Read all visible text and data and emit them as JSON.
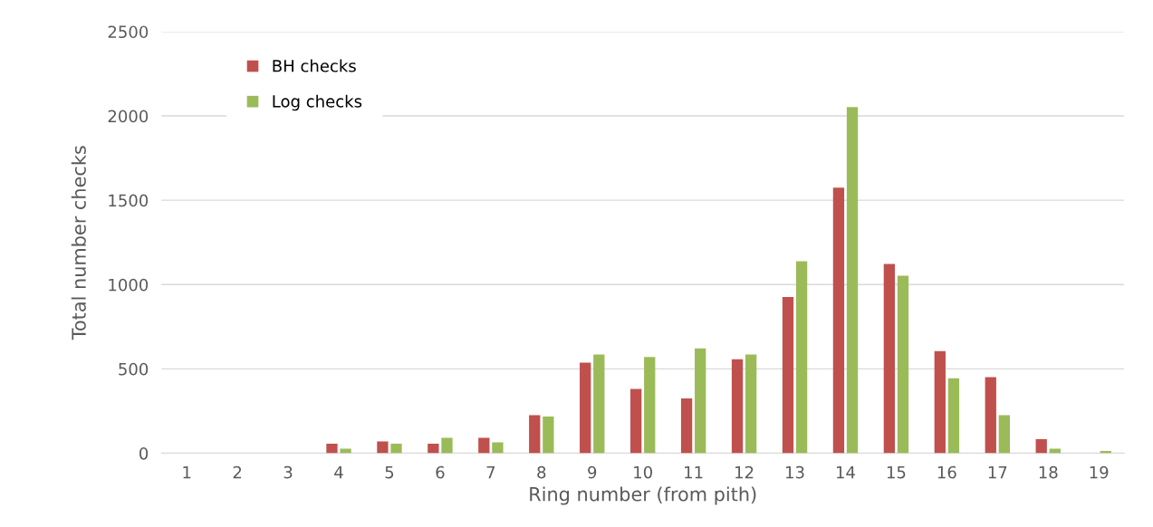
{
  "chart_data": {
    "type": "bar",
    "xlabel": "Ring number (from pith)",
    "ylabel": "Total number checks",
    "categories": [
      "1",
      "2",
      "3",
      "4",
      "5",
      "6",
      "7",
      "8",
      "9",
      "10",
      "11",
      "12",
      "13",
      "14",
      "15",
      "16",
      "17",
      "18",
      "19"
    ],
    "series": [
      {
        "name": "BH checks",
        "color": "#c0504d",
        "values": [
          0,
          0,
          0,
          57,
          70,
          57,
          92,
          225,
          537,
          382,
          325,
          557,
          927,
          1575,
          1122,
          606,
          451,
          84,
          0
        ]
      },
      {
        "name": "Log checks",
        "color": "#9bbb59",
        "values": [
          0,
          0,
          0,
          27,
          57,
          92,
          64,
          218,
          586,
          570,
          621,
          586,
          1139,
          2053,
          1053,
          445,
          225,
          27,
          13
        ]
      }
    ],
    "ylim": [
      0,
      2500
    ],
    "yticks": [
      0,
      500,
      1000,
      1500,
      2000,
      2500
    ],
    "grid": "y",
    "legend": "top left"
  }
}
